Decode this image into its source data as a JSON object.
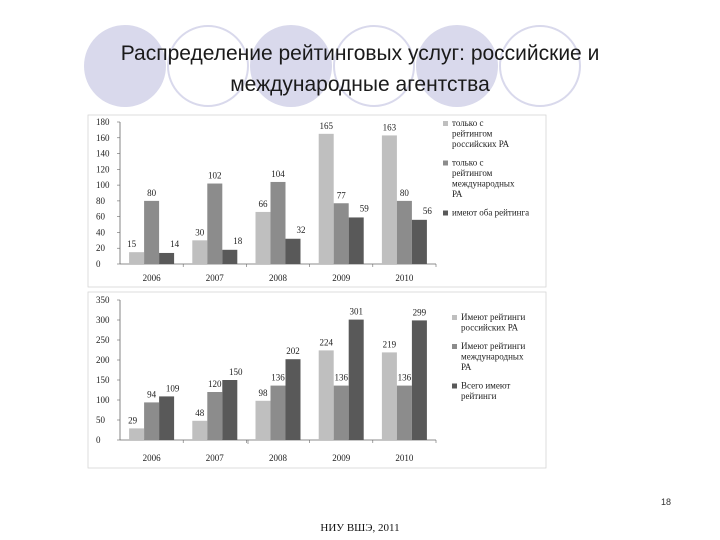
{
  "slide": {
    "title_line1": "Распределение рейтинговых услуг: российские и",
    "title_line2": "международные агентства",
    "page_number": "18",
    "footer": "НИУ ВШЭ, 2011"
  },
  "colors": {
    "light": "#bfbfbf",
    "medium": "#8c8c8c",
    "dark": "#595959",
    "decor": "#d9d9ec"
  },
  "chart_data": [
    {
      "type": "bar",
      "categories": [
        "2006",
        "2007",
        "2008",
        "2009",
        "2010"
      ],
      "ylim": [
        0,
        180
      ],
      "yticks": [
        0,
        20,
        40,
        60,
        80,
        100,
        120,
        140,
        160,
        180
      ],
      "legend_position": "right",
      "series": [
        {
          "name": "только с рейтингом российских РА",
          "legend_lines": [
            "только с",
            "рейтингом",
            "российских РА"
          ],
          "color": "#bfbfbf",
          "values": [
            15,
            30,
            66,
            165,
            163
          ]
        },
        {
          "name": "только с рейтингом международных РА",
          "legend_lines": [
            "только с",
            "рейтингом",
            "международных",
            "РА"
          ],
          "color": "#8c8c8c",
          "values": [
            80,
            102,
            104,
            77,
            80
          ]
        },
        {
          "name": "имеют оба рейтинга",
          "legend_lines": [
            "имеют оба рейтинга"
          ],
          "color": "#595959",
          "values": [
            14,
            18,
            32,
            59,
            56
          ]
        }
      ]
    },
    {
      "type": "bar",
      "categories": [
        "2006",
        "2007",
        "2008",
        "2009",
        "2010"
      ],
      "ylim": [
        0,
        350
      ],
      "yticks": [
        0,
        50,
        100,
        150,
        200,
        250,
        300,
        350
      ],
      "legend_position": "right",
      "series": [
        {
          "name": "Имеют рейтинги российских РА",
          "legend_lines": [
            "Имеют рейтинги",
            "российских РА"
          ],
          "color": "#bfbfbf",
          "values": [
            29,
            48,
            98,
            224,
            219
          ]
        },
        {
          "name": "Имеют рейтинги международных РА",
          "legend_lines": [
            "Имеют рейтинги",
            "международных",
            "РА"
          ],
          "color": "#8c8c8c",
          "values": [
            94,
            120,
            136,
            136,
            136
          ]
        },
        {
          "name": "Всего имеют рейтинги",
          "legend_lines": [
            "Всего имеют",
            "рейтинги"
          ],
          "color": "#595959",
          "values": [
            109,
            150,
            202,
            301,
            299
          ]
        }
      ]
    }
  ]
}
